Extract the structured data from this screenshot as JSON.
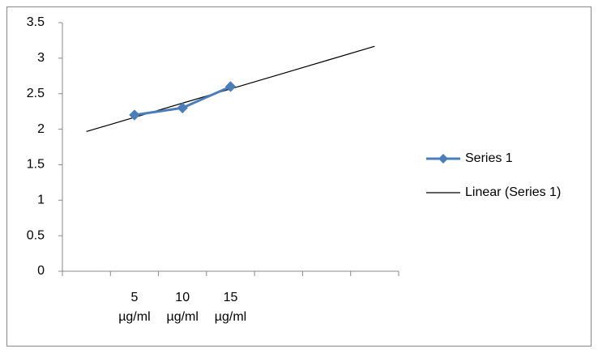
{
  "chart_data": {
    "type": "line",
    "categories": [
      null,
      "5 µg/ml",
      "10 µg/ml",
      "15 µg/ml",
      null,
      null,
      null
    ],
    "series": [
      {
        "name": "Series 1",
        "color": "#4a7ebb",
        "values": [
          null,
          2.2,
          2.3,
          2.6,
          null,
          null,
          null
        ]
      },
      {
        "name": "Linear (Series 1)",
        "color": "#000000",
        "values": [
          1.967,
          2.167,
          2.367,
          2.567,
          2.767,
          2.967,
          3.167
        ]
      }
    ],
    "ylim": [
      0,
      3.5
    ],
    "yticks": [
      0,
      0.5,
      1,
      1.5,
      2,
      2.5,
      3,
      3.5
    ],
    "grid": false,
    "legend": "right"
  }
}
